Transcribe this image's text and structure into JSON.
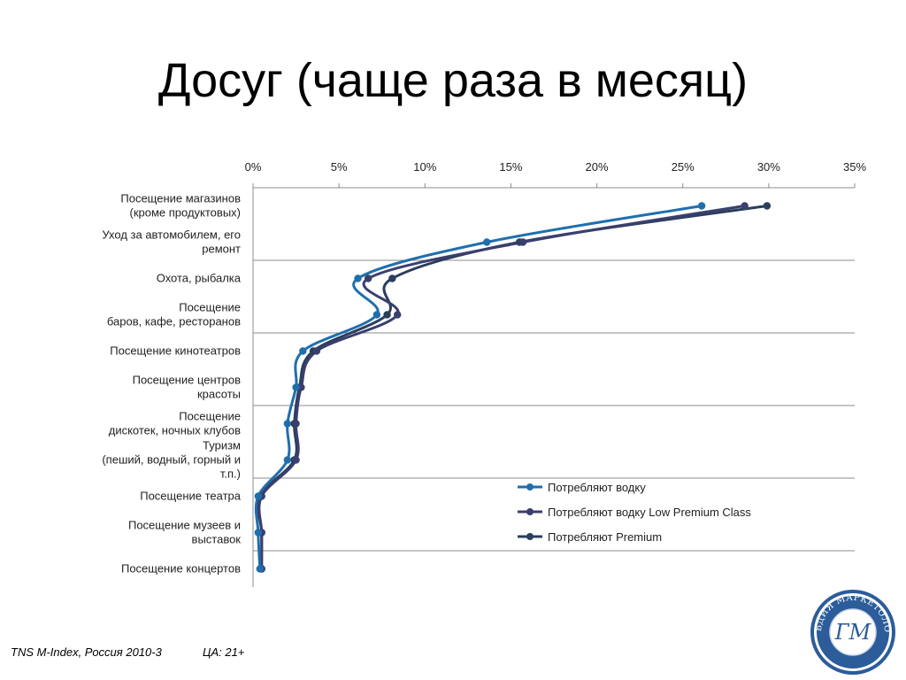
{
  "slide": {
    "title": "Досуг (чаще раза в месяц)",
    "footer_source": "TNS M-Index, Россия 2010-3",
    "footer_audience": "ЦА: 21+",
    "logo_text": "ГИЛЬДИЯ МАРКЕТОЛОГОВ",
    "logo_monogram": "ГМ"
  },
  "chart_data": {
    "type": "line",
    "orientation": "horizontal",
    "title": "",
    "xlim": [
      0,
      35
    ],
    "x_ticks": [
      "0%",
      "5%",
      "10%",
      "15%",
      "20%",
      "25%",
      "30%",
      "35%"
    ],
    "x_tick_values": [
      0,
      5,
      10,
      15,
      20,
      25,
      30,
      35
    ],
    "grid": true,
    "legend_position": "bottom-right",
    "categories": [
      [
        "Посещение магазинов",
        "(кроме продуктовых)"
      ],
      [
        "Уход за автомобилем, его",
        "ремонт"
      ],
      [
        "Охота, рыбалка"
      ],
      [
        "Посещение",
        "баров, кафе, ресторанов"
      ],
      [
        "Посещение кинотеатров"
      ],
      [
        "Посещение центров",
        "красоты"
      ],
      [
        "Посещение",
        "дискотек, ночных клубов"
      ],
      [
        "Туризм",
        "(пеший, водный, горный и",
        "т.п.)"
      ],
      [
        "Посещение театра"
      ],
      [
        "Посещение музеев и",
        "выставок"
      ],
      [
        "Посещение концертов"
      ]
    ],
    "series": [
      {
        "name": "Потребляют водку",
        "color": "#1f6fad",
        "values": [
          26.1,
          13.6,
          6.1,
          7.2,
          2.9,
          2.5,
          2.0,
          2.0,
          0.3,
          0.3,
          0.4
        ]
      },
      {
        "name": "Потребляют водку Low Premium Class",
        "color": "#3a3f6e",
        "values": [
          28.6,
          15.7,
          6.7,
          8.4,
          3.7,
          2.8,
          2.5,
          2.5,
          0.5,
          0.5,
          0.5
        ]
      },
      {
        "name": "Потребляют Premium",
        "color": "#2b3e5c",
        "values": [
          29.9,
          15.5,
          8.1,
          7.8,
          3.5,
          2.7,
          2.4,
          2.4,
          0.4,
          0.5,
          0.5
        ]
      }
    ]
  }
}
